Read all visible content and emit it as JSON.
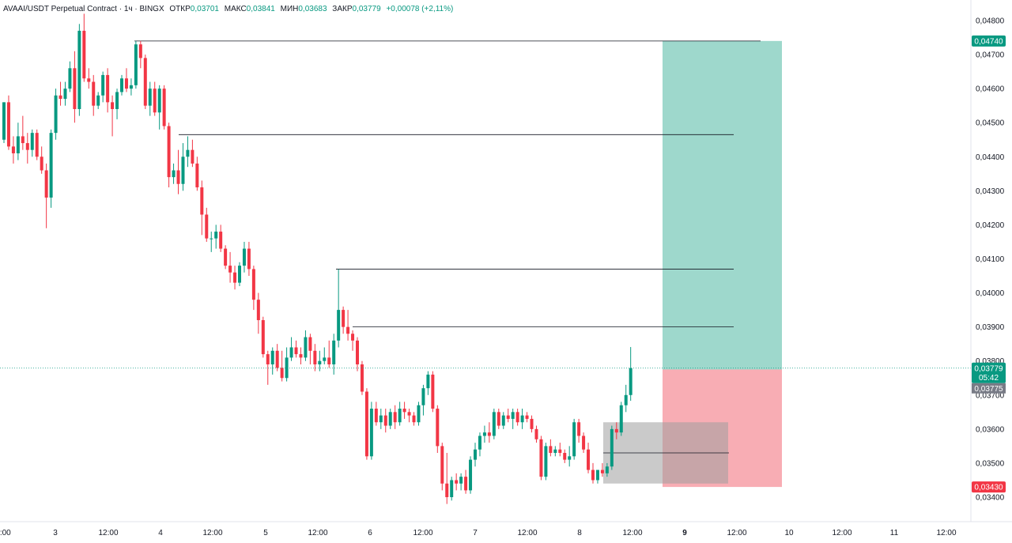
{
  "legend": {
    "symbol": "AVAAI/USDT Perpetual Contract · 1ч · BINGX",
    "open_label": "ОТКР",
    "open": "0,03701",
    "high_label": "МАКС",
    "high": "0,03841",
    "low_label": "МИН",
    "low": "0,03683",
    "close_label": "ЗАКР",
    "close": "0,03779",
    "change": "+0,00078 (+2,11%)"
  },
  "price_tags": {
    "target": "0,04740",
    "last": "0,03779",
    "countdown": "05:42",
    "entry": "0,03775",
    "stop": "0,03430"
  },
  "colors": {
    "up": "#089981",
    "down": "#f23645",
    "profit_zone": "#9ed8cc",
    "loss_zone": "#f8adb4",
    "box": "#9e9e9e"
  },
  "chart_data": {
    "type": "candlestick",
    "timeframe": "1h",
    "y_axis_labels": [
      "0,04800",
      "0,04700",
      "0,04600",
      "0,04500",
      "0,04400",
      "0,04300",
      "0,04200",
      "0,04100",
      "0,04000",
      "0,03900",
      "0,03800",
      "0,03700",
      "0,03600",
      "0,03500",
      "0,03400"
    ],
    "x_axis_labels": [
      "2:00",
      "3",
      "12:00",
      "4",
      "12:00",
      "5",
      "12:00",
      "6",
      "12:00",
      "7",
      "12:00",
      "8",
      "12:00",
      "9",
      "12:00",
      "10",
      "12:00",
      "11",
      "12:00"
    ],
    "ylim": [
      0.0339,
      0.0484
    ],
    "ohlc": [
      [
        0.0445,
        0.0456,
        0.0444,
        0.0456
      ],
      [
        0.0456,
        0.0458,
        0.0442,
        0.0443
      ],
      [
        0.0443,
        0.0446,
        0.0438,
        0.0441
      ],
      [
        0.0441,
        0.045,
        0.0439,
        0.0446
      ],
      [
        0.0446,
        0.0452,
        0.0442,
        0.0444
      ],
      [
        0.0444,
        0.0447,
        0.0438,
        0.0442
      ],
      [
        0.0442,
        0.0448,
        0.044,
        0.0447
      ],
      [
        0.0447,
        0.0448,
        0.0439,
        0.044
      ],
      [
        0.044,
        0.0443,
        0.0435,
        0.0436
      ],
      [
        0.0436,
        0.0438,
        0.0419,
        0.0428
      ],
      [
        0.0428,
        0.0448,
        0.0425,
        0.0447
      ],
      [
        0.0447,
        0.046,
        0.0445,
        0.0458
      ],
      [
        0.0458,
        0.0462,
        0.0455,
        0.0457
      ],
      [
        0.0457,
        0.0462,
        0.0455,
        0.046
      ],
      [
        0.046,
        0.0468,
        0.0459,
        0.0466
      ],
      [
        0.0466,
        0.0471,
        0.045,
        0.0454
      ],
      [
        0.0454,
        0.0479,
        0.0452,
        0.0477
      ],
      [
        0.0477,
        0.0482,
        0.0462,
        0.0463
      ],
      [
        0.0463,
        0.0466,
        0.046,
        0.0462
      ],
      [
        0.0462,
        0.0464,
        0.0452,
        0.0455
      ],
      [
        0.0455,
        0.0459,
        0.0454,
        0.0458
      ],
      [
        0.0458,
        0.0465,
        0.0456,
        0.0464
      ],
      [
        0.0464,
        0.0466,
        0.0453,
        0.0456
      ],
      [
        0.0456,
        0.0458,
        0.0446,
        0.0454
      ],
      [
        0.0454,
        0.046,
        0.0451,
        0.0459
      ],
      [
        0.0459,
        0.0464,
        0.0458,
        0.0463
      ],
      [
        0.0463,
        0.0466,
        0.0459,
        0.046
      ],
      [
        0.046,
        0.0463,
        0.0458,
        0.0461
      ],
      [
        0.0461,
        0.0474,
        0.046,
        0.0473
      ],
      [
        0.0473,
        0.0474,
        0.0466,
        0.0469
      ],
      [
        0.0469,
        0.047,
        0.0454,
        0.0455
      ],
      [
        0.0455,
        0.0462,
        0.0452,
        0.046
      ],
      [
        0.046,
        0.0462,
        0.0452,
        0.0453
      ],
      [
        0.0453,
        0.0461,
        0.0448,
        0.046
      ],
      [
        0.046,
        0.0461,
        0.0448,
        0.0449
      ],
      [
        0.0449,
        0.045,
        0.0431,
        0.0434
      ],
      [
        0.0434,
        0.0438,
        0.0432,
        0.0436
      ],
      [
        0.0436,
        0.0442,
        0.0429,
        0.0432
      ],
      [
        0.0432,
        0.0444,
        0.043,
        0.044
      ],
      [
        0.044,
        0.0446,
        0.0437,
        0.0442
      ],
      [
        0.0442,
        0.0445,
        0.0437,
        0.0438
      ],
      [
        0.0438,
        0.044,
        0.043,
        0.0431
      ],
      [
        0.0431,
        0.0433,
        0.0417,
        0.0423
      ],
      [
        0.0423,
        0.0425,
        0.0415,
        0.0416
      ],
      [
        0.0416,
        0.0418,
        0.0412,
        0.0416
      ],
      [
        0.0416,
        0.042,
        0.0413,
        0.0418
      ],
      [
        0.0418,
        0.042,
        0.0412,
        0.0413
      ],
      [
        0.0413,
        0.0414,
        0.0407,
        0.0408
      ],
      [
        0.0408,
        0.0412,
        0.0403,
        0.0406
      ],
      [
        0.0406,
        0.0408,
        0.0401,
        0.0403
      ],
      [
        0.0403,
        0.0409,
        0.0402,
        0.0408
      ],
      [
        0.0408,
        0.0415,
        0.0406,
        0.0413
      ],
      [
        0.0413,
        0.0415,
        0.0405,
        0.0407
      ],
      [
        0.0407,
        0.0408,
        0.0395,
        0.0398
      ],
      [
        0.0398,
        0.04,
        0.0388,
        0.0392
      ],
      [
        0.0392,
        0.0393,
        0.0381,
        0.0382
      ],
      [
        0.0382,
        0.0383,
        0.0373,
        0.0379
      ],
      [
        0.0379,
        0.0384,
        0.0376,
        0.0383
      ],
      [
        0.0383,
        0.0385,
        0.0377,
        0.0378
      ],
      [
        0.0378,
        0.0383,
        0.0374,
        0.0375
      ],
      [
        0.0375,
        0.0384,
        0.0374,
        0.0381
      ],
      [
        0.0381,
        0.0387,
        0.038,
        0.0384
      ],
      [
        0.0384,
        0.0386,
        0.0381,
        0.0382
      ],
      [
        0.0382,
        0.0384,
        0.0379,
        0.0381
      ],
      [
        0.0381,
        0.0389,
        0.038,
        0.0387
      ],
      [
        0.0387,
        0.0388,
        0.0379,
        0.0383
      ],
      [
        0.0383,
        0.0385,
        0.0377,
        0.0379
      ],
      [
        0.0379,
        0.0383,
        0.0377,
        0.038
      ],
      [
        0.038,
        0.0384,
        0.0379,
        0.0381
      ],
      [
        0.0381,
        0.0386,
        0.0378,
        0.0379
      ],
      [
        0.0379,
        0.0388,
        0.0376,
        0.0386
      ],
      [
        0.0386,
        0.0407,
        0.0384,
        0.0395
      ],
      [
        0.0395,
        0.0396,
        0.0388,
        0.039
      ],
      [
        0.039,
        0.0395,
        0.0386,
        0.0388
      ],
      [
        0.0388,
        0.0389,
        0.0383,
        0.0386
      ],
      [
        0.0386,
        0.0387,
        0.0377,
        0.0379
      ],
      [
        0.0379,
        0.038,
        0.037,
        0.0371
      ],
      [
        0.0371,
        0.0372,
        0.0351,
        0.0352
      ],
      [
        0.0352,
        0.0368,
        0.0351,
        0.0366
      ],
      [
        0.0366,
        0.0368,
        0.0361,
        0.0362
      ],
      [
        0.0362,
        0.0366,
        0.036,
        0.0364
      ],
      [
        0.0364,
        0.0366,
        0.0359,
        0.0361
      ],
      [
        0.0361,
        0.0366,
        0.036,
        0.0365
      ],
      [
        0.0365,
        0.0367,
        0.036,
        0.0362
      ],
      [
        0.0362,
        0.0368,
        0.0361,
        0.0366
      ],
      [
        0.0366,
        0.0368,
        0.0363,
        0.0365
      ],
      [
        0.0365,
        0.0366,
        0.0362,
        0.0364
      ],
      [
        0.0364,
        0.0365,
        0.0361,
        0.0362
      ],
      [
        0.0362,
        0.0368,
        0.0361,
        0.0367
      ],
      [
        0.0367,
        0.0373,
        0.0364,
        0.0372
      ],
      [
        0.0372,
        0.0377,
        0.037,
        0.0376
      ],
      [
        0.0376,
        0.0377,
        0.0365,
        0.0366
      ],
      [
        0.0366,
        0.0367,
        0.0353,
        0.0355
      ],
      [
        0.0355,
        0.0356,
        0.0342,
        0.0344
      ],
      [
        0.0344,
        0.0353,
        0.0338,
        0.034
      ],
      [
        0.034,
        0.0346,
        0.0339,
        0.0345
      ],
      [
        0.0345,
        0.0347,
        0.0342,
        0.0344
      ],
      [
        0.0344,
        0.0347,
        0.0342,
        0.0346
      ],
      [
        0.0346,
        0.0348,
        0.0341,
        0.0342
      ],
      [
        0.0342,
        0.0352,
        0.0341,
        0.0351
      ],
      [
        0.0351,
        0.0356,
        0.0349,
        0.0354
      ],
      [
        0.0354,
        0.0359,
        0.0352,
        0.0358
      ],
      [
        0.0358,
        0.0361,
        0.0356,
        0.0359
      ],
      [
        0.0359,
        0.0362,
        0.0356,
        0.0358
      ],
      [
        0.0358,
        0.0366,
        0.0357,
        0.0365
      ],
      [
        0.0365,
        0.0366,
        0.036,
        0.0361
      ],
      [
        0.0361,
        0.0365,
        0.036,
        0.0364
      ],
      [
        0.0364,
        0.0366,
        0.0362,
        0.0363
      ],
      [
        0.0363,
        0.0366,
        0.036,
        0.0365
      ],
      [
        0.0365,
        0.0366,
        0.0361,
        0.0362
      ],
      [
        0.0362,
        0.0366,
        0.036,
        0.0364
      ],
      [
        0.0364,
        0.0365,
        0.0362,
        0.0363
      ],
      [
        0.0363,
        0.0364,
        0.0359,
        0.036
      ],
      [
        0.036,
        0.0361,
        0.0356,
        0.0357
      ],
      [
        0.0357,
        0.0358,
        0.0345,
        0.0346
      ],
      [
        0.0346,
        0.0356,
        0.0345,
        0.0355
      ],
      [
        0.0355,
        0.0357,
        0.0352,
        0.0353
      ],
      [
        0.0353,
        0.0355,
        0.0352,
        0.0354
      ],
      [
        0.0354,
        0.0356,
        0.0352,
        0.0353
      ],
      [
        0.0353,
        0.0354,
        0.035,
        0.0351
      ],
      [
        0.0351,
        0.0355,
        0.0349,
        0.0352
      ],
      [
        0.0352,
        0.0363,
        0.0351,
        0.0362
      ],
      [
        0.0362,
        0.0363,
        0.0356,
        0.0358
      ],
      [
        0.0358,
        0.0359,
        0.0353,
        0.0354
      ],
      [
        0.0354,
        0.0356,
        0.0347,
        0.0348
      ],
      [
        0.0348,
        0.035,
        0.0344,
        0.0345
      ],
      [
        0.0345,
        0.0348,
        0.0344,
        0.0348
      ],
      [
        0.0348,
        0.035,
        0.0346,
        0.0347
      ],
      [
        0.0347,
        0.035,
        0.0346,
        0.0349
      ],
      [
        0.0349,
        0.0361,
        0.0348,
        0.036
      ],
      [
        0.036,
        0.0362,
        0.0357,
        0.0359
      ],
      [
        0.0359,
        0.0368,
        0.0358,
        0.0367
      ],
      [
        0.0367,
        0.0373,
        0.0365,
        0.037
      ],
      [
        0.037,
        0.03841,
        0.03683,
        0.03779
      ]
    ],
    "drawn_levels": [
      0.0474,
      0.04465,
      0.0407,
      0.039,
      0.0353
    ],
    "position": {
      "type": "long",
      "entry": 0.03775,
      "target": 0.0474,
      "stop": 0.0343
    },
    "consolidation_box": {
      "top": 0.0362,
      "bottom": 0.0344
    },
    "last_price": 0.03779,
    "grid": false
  }
}
